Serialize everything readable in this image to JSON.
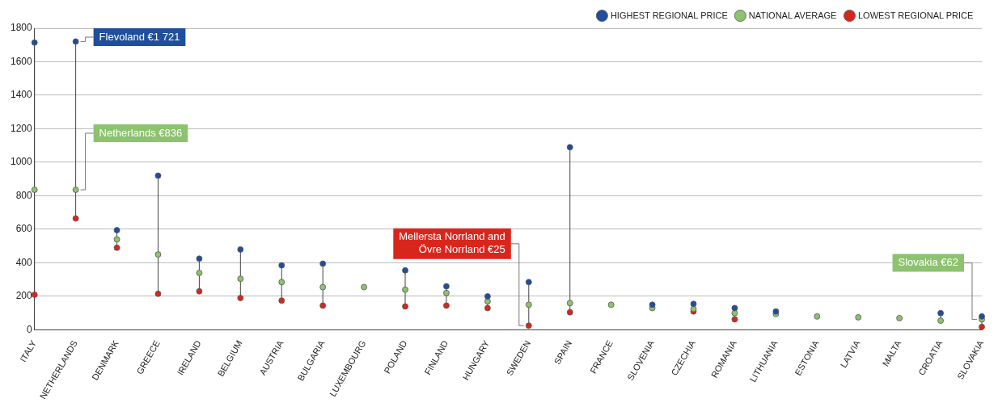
{
  "chart_data": {
    "type": "scatter",
    "categories": [
      "ITALY",
      "NETHERLANDS",
      "DENMARK",
      "GREECE",
      "IRELAND",
      "BELGIUM",
      "AUSTRIA",
      "BULGARIA",
      "LUXEMBOURG",
      "POLAND",
      "FINLAND",
      "HUNGARY",
      "SWEDEN",
      "SPAIN",
      "FRANCE",
      "SLOVENIA",
      "CZECHIA",
      "ROMANIA",
      "LITHUANIA",
      "ESTONIA",
      "LATVIA",
      "MALTA",
      "CROATIA",
      "SLOVAKIA"
    ],
    "series": [
      {
        "name": "HIGHEST REGIONAL PRICE",
        "color": "#1f4e9c",
        "values": [
          1715,
          1721,
          595,
          920,
          425,
          480,
          385,
          395,
          null,
          355,
          260,
          200,
          285,
          1090,
          null,
          150,
          155,
          130,
          110,
          null,
          null,
          null,
          100,
          80
        ]
      },
      {
        "name": "NATIONAL AVERAGE",
        "color": "#8dc26f",
        "values": [
          836,
          836,
          540,
          450,
          340,
          305,
          285,
          255,
          255,
          240,
          220,
          170,
          150,
          160,
          150,
          130,
          125,
          100,
          95,
          80,
          75,
          70,
          55,
          62
        ]
      },
      {
        "name": "LOWEST REGIONAL PRICE",
        "color": "#d9261c",
        "values": [
          210,
          665,
          490,
          215,
          230,
          190,
          175,
          145,
          null,
          140,
          145,
          130,
          25,
          105,
          null,
          null,
          110,
          63,
          null,
          null,
          null,
          null,
          null,
          18
        ]
      }
    ],
    "ylim": [
      0,
      1800
    ],
    "yticks": [
      0,
      200,
      400,
      600,
      800,
      1000,
      1200,
      1400,
      1600,
      1800
    ],
    "grid": "y",
    "legend": "top right",
    "marker": "circle",
    "annotations": [
      {
        "text": "Flevoland €1 721",
        "x": "NETHERLANDS",
        "y": 1721
      },
      {
        "text": "Netherlands €836",
        "x": "NETHERLANDS",
        "y": 836
      },
      {
        "text": "Mellersta Norrland and Övre Norrland €25",
        "x": "SWEDEN",
        "y": 25
      },
      {
        "text": "Slovakia €62",
        "x": "SLOVAKIA",
        "y": 62
      }
    ]
  }
}
